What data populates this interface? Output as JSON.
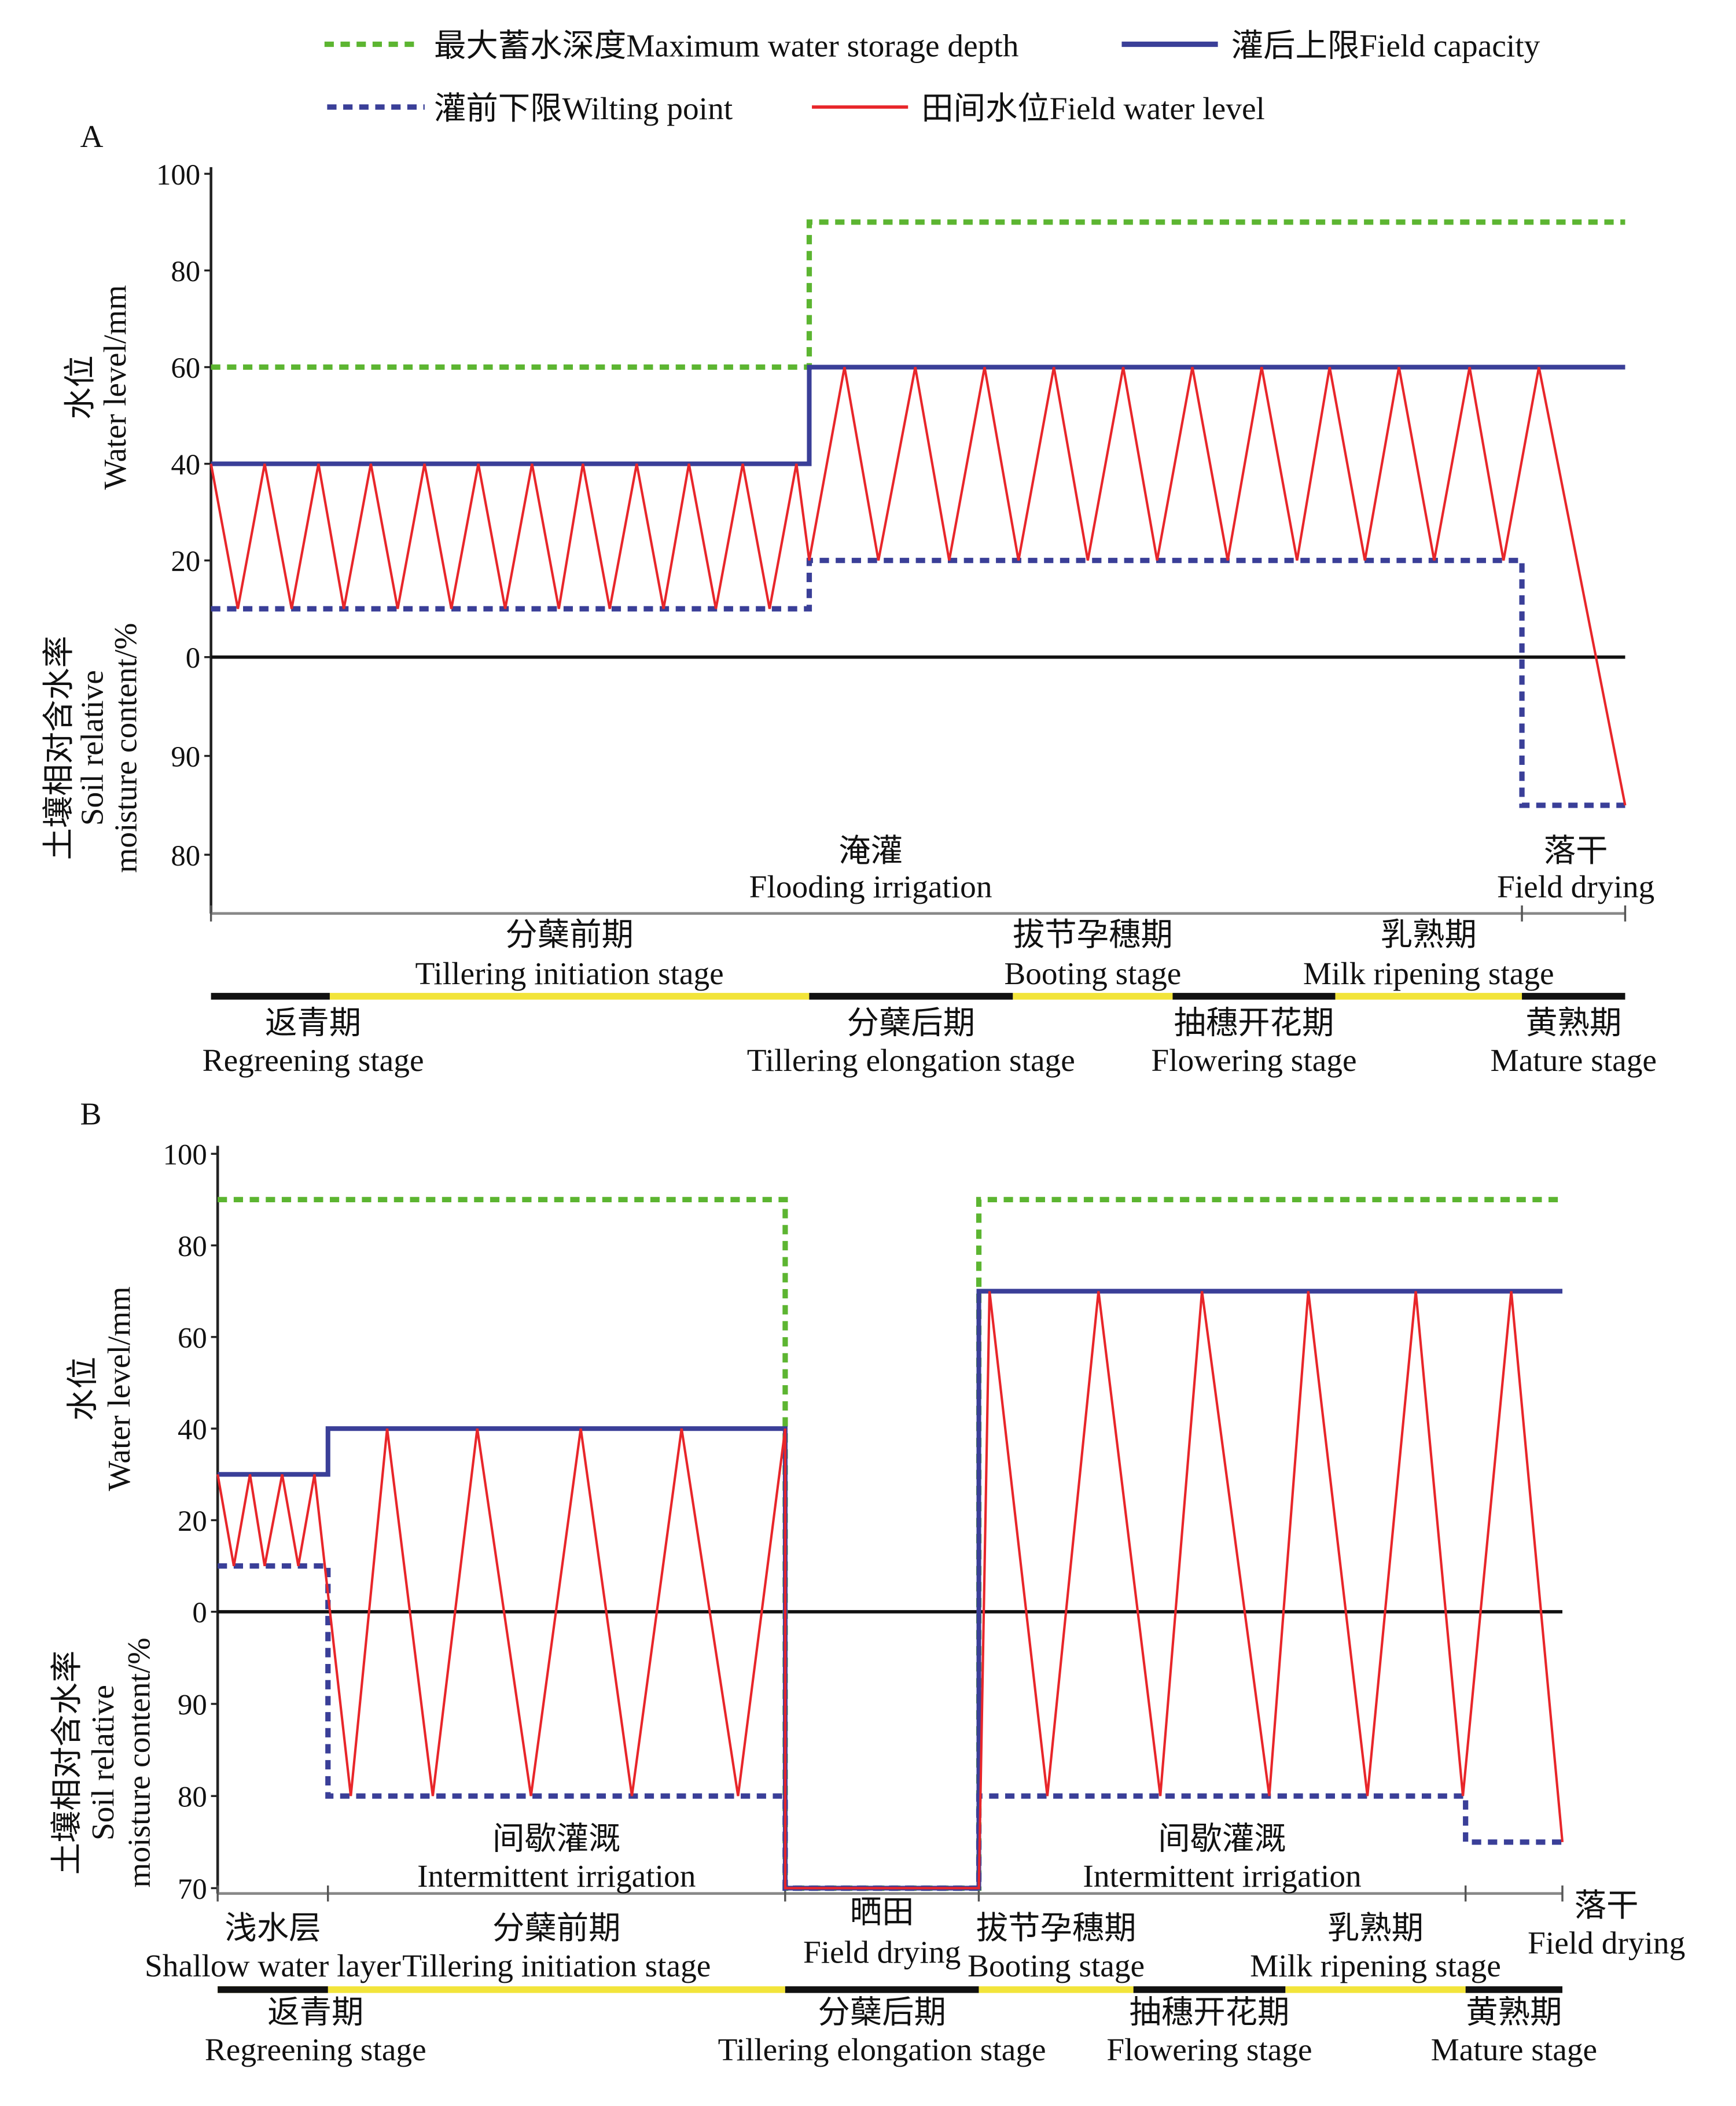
{
  "chart_data": [
    {
      "type": "line",
      "panel_label": "A",
      "legend": {
        "max_storage": "最大蓄水深度Maximum water storage depth",
        "field_capacity": "灌后上限Field capacity",
        "wilting_point": "灌前下限Wilting point",
        "field_water_level": "田间水位Field water level"
      },
      "ylabel_water_cn": "水位",
      "ylabel_water_en": "Water level/mm",
      "ylabel_soil_cn": "土壤相对含水率",
      "ylabel_soil_en1": "Soil relative",
      "ylabel_soil_en2": "moisture content/%",
      "water_ticks": [
        "100",
        "80",
        "60",
        "40",
        "20",
        "0"
      ],
      "soil_ticks": [
        "90",
        "80"
      ],
      "xlim": [
        0,
        100
      ],
      "water_ylim": [
        0,
        100
      ],
      "soil_ylim": [
        75,
        100
      ],
      "phases": [
        {
          "cn": "淹灌",
          "en": "Flooding irrigation",
          "range": [
            0,
            92.7
          ]
        },
        {
          "cn": "落干",
          "en": "Field drying",
          "range": [
            92.7,
            100
          ]
        }
      ],
      "stages_upper": [
        {
          "cn": "分蘖前期",
          "en": "Tillering initiation stage",
          "range": [
            8.4,
            42.3
          ]
        },
        {
          "cn": "拔节孕穗期",
          "en": "Booting stage",
          "range": [
            56.7,
            68.0
          ]
        },
        {
          "cn": "乳熟期",
          "en": "Milk ripening stage",
          "range": [
            79.5,
            92.7
          ]
        }
      ],
      "stages_lower": [
        {
          "cn": "返青期",
          "en": "Regreening stage",
          "range": [
            0,
            8.4
          ]
        },
        {
          "cn": "分蘖后期",
          "en": "Tillering elongation stage",
          "range": [
            42.3,
            56.7
          ]
        },
        {
          "cn": "抽穗开花期",
          "en": "Flowering stage",
          "range": [
            68.0,
            79.5
          ]
        },
        {
          "cn": "黄熟期",
          "en": "Mature stage",
          "range": [
            92.7,
            100
          ]
        }
      ],
      "series": [
        {
          "name": "max_storage",
          "color": "#5cb531",
          "style": "dashed",
          "points": [
            [
              0,
              60,
              "w"
            ],
            [
              42.3,
              60,
              "w"
            ],
            [
              42.3,
              90,
              "w"
            ],
            [
              100,
              90,
              "w"
            ]
          ]
        },
        {
          "name": "field_capacity",
          "color": "#3a3f98",
          "style": "solid",
          "points": [
            [
              0,
              40,
              "w"
            ],
            [
              42.3,
              40,
              "w"
            ],
            [
              42.3,
              60,
              "w"
            ],
            [
              100,
              60,
              "w"
            ]
          ]
        },
        {
          "name": "wilting_point",
          "color": "#3a3f98",
          "style": "dotted",
          "points": [
            [
              0,
              10,
              "w"
            ],
            [
              42.3,
              10,
              "w"
            ],
            [
              42.3,
              20,
              "w"
            ],
            [
              92.7,
              20,
              "w"
            ],
            [
              92.7,
              85,
              "s"
            ],
            [
              100,
              85,
              "s"
            ]
          ]
        },
        {
          "name": "field_water_level",
          "color": "#e8262a",
          "style": "thin",
          "points": [
            [
              0,
              40,
              "w"
            ],
            [
              1.9,
              10,
              "w"
            ],
            [
              3.8,
              40,
              "w"
            ],
            [
              5.7,
              10,
              "w"
            ],
            [
              7.6,
              40,
              "w"
            ],
            [
              9.4,
              10,
              "w"
            ],
            [
              11.3,
              40,
              "w"
            ],
            [
              13.2,
              10,
              "w"
            ],
            [
              15.1,
              40,
              "w"
            ],
            [
              17.0,
              10,
              "w"
            ],
            [
              18.9,
              40,
              "w"
            ],
            [
              20.8,
              10,
              "w"
            ],
            [
              22.7,
              40,
              "w"
            ],
            [
              24.6,
              10,
              "w"
            ],
            [
              26.3,
              40,
              "w"
            ],
            [
              28.2,
              10,
              "w"
            ],
            [
              30.1,
              40,
              "w"
            ],
            [
              32.0,
              10,
              "w"
            ],
            [
              33.8,
              40,
              "w"
            ],
            [
              35.7,
              10,
              "w"
            ],
            [
              37.6,
              40,
              "w"
            ],
            [
              39.5,
              10,
              "w"
            ],
            [
              41.4,
              40,
              "w"
            ],
            [
              42.3,
              20,
              "w"
            ],
            [
              44.8,
              60,
              "w"
            ],
            [
              47.2,
              20,
              "w"
            ],
            [
              49.8,
              60,
              "w"
            ],
            [
              52.2,
              20,
              "w"
            ],
            [
              54.7,
              60,
              "w"
            ],
            [
              57.1,
              20,
              "w"
            ],
            [
              59.6,
              60,
              "w"
            ],
            [
              62.0,
              20,
              "w"
            ],
            [
              64.5,
              60,
              "w"
            ],
            [
              66.9,
              20,
              "w"
            ],
            [
              69.4,
              60,
              "w"
            ],
            [
              71.9,
              20,
              "w"
            ],
            [
              74.3,
              60,
              "w"
            ],
            [
              76.8,
              20,
              "w"
            ],
            [
              79.1,
              60,
              "w"
            ],
            [
              81.6,
              20,
              "w"
            ],
            [
              84.0,
              60,
              "w"
            ],
            [
              86.5,
              20,
              "w"
            ],
            [
              89.0,
              60,
              "w"
            ],
            [
              91.4,
              20,
              "w"
            ],
            [
              93.9,
              60,
              "w"
            ],
            [
              100,
              85,
              "s"
            ]
          ]
        }
      ]
    },
    {
      "type": "line",
      "panel_label": "B",
      "ylabel_water_cn": "水位",
      "ylabel_water_en": "Water level/mm",
      "ylabel_soil_cn": "土壤相对含水率",
      "ylabel_soil_en1": "Soil relative",
      "ylabel_soil_en2": "moisture content/%",
      "water_ticks": [
        "100",
        "80",
        "60",
        "40",
        "20",
        "0"
      ],
      "soil_ticks": [
        "90",
        "80",
        "70"
      ],
      "xlim": [
        0,
        100
      ],
      "water_ylim": [
        0,
        100
      ],
      "soil_ylim": [
        70,
        100
      ],
      "phases": [
        {
          "cn": "间歇灌溉",
          "en": "Intermittent irrigation",
          "range": [
            8.2,
            42.2
          ]
        },
        {
          "cn": "晒田",
          "en": "Field drying",
          "range": [
            42.2,
            56.6
          ]
        },
        {
          "cn": "间歇灌溉",
          "en": "Intermittent irrigation",
          "range": [
            56.6,
            92.8
          ]
        },
        {
          "cn": "落干",
          "en": "Field drying",
          "range": [
            92.8,
            100
          ]
        }
      ],
      "stages_upper": [
        {
          "cn": "浅水层",
          "en": "Shallow water layer",
          "range": [
            0,
            8.2
          ]
        },
        {
          "cn": "分蘖前期",
          "en": "Tillering initiation stage",
          "range": [
            8.2,
            42.2
          ]
        },
        {
          "cn": "拔节孕穗期",
          "en": "Booting stage",
          "range": [
            56.6,
            68.1
          ]
        },
        {
          "cn": "乳熟期",
          "en": "Milk ripening stage",
          "range": [
            79.4,
            92.8
          ]
        }
      ],
      "stages_lower": [
        {
          "cn": "返青期",
          "en": "Regreening stage",
          "range": [
            0,
            8.2
          ]
        },
        {
          "cn": "分蘖后期",
          "en": "Tillering elongation stage",
          "range": [
            42.2,
            56.6
          ]
        },
        {
          "cn": "抽穗开花期",
          "en": "Flowering stage",
          "range": [
            68.1,
            79.4
          ]
        },
        {
          "cn": "黄熟期",
          "en": "Mature stage",
          "range": [
            92.8,
            100
          ]
        }
      ],
      "series": [
        {
          "name": "max_storage",
          "color": "#5cb531",
          "style": "dashed",
          "points": [
            [
              0,
              90,
              "w"
            ],
            [
              42.2,
              90,
              "w"
            ],
            [
              42.2,
              70,
              "s"
            ],
            [
              56.6,
              70,
              "s"
            ],
            [
              56.6,
              90,
              "w"
            ],
            [
              100,
              90,
              "w"
            ]
          ]
        },
        {
          "name": "field_capacity",
          "color": "#3a3f98",
          "style": "solid",
          "points": [
            [
              0,
              30,
              "w"
            ],
            [
              8.2,
              30,
              "w"
            ],
            [
              8.2,
              40,
              "w"
            ],
            [
              42.2,
              40,
              "w"
            ],
            [
              42.2,
              70,
              "s"
            ],
            [
              56.6,
              70,
              "s"
            ],
            [
              56.6,
              70,
              "w"
            ],
            [
              100,
              70,
              "w"
            ]
          ]
        },
        {
          "name": "wilting_point",
          "color": "#3a3f98",
          "style": "dotted",
          "points": [
            [
              0,
              10,
              "w"
            ],
            [
              8.2,
              10,
              "w"
            ],
            [
              8.2,
              80,
              "s"
            ],
            [
              42.2,
              80,
              "s"
            ],
            [
              42.2,
              70,
              "s"
            ],
            [
              56.6,
              70,
              "s"
            ],
            [
              56.6,
              80,
              "s"
            ],
            [
              92.8,
              80,
              "s"
            ],
            [
              92.8,
              75,
              "s"
            ],
            [
              100,
              75,
              "s"
            ]
          ]
        },
        {
          "name": "field_water_level",
          "color": "#e8262a",
          "style": "thin",
          "points": [
            [
              0,
              30,
              "w"
            ],
            [
              1.2,
              10,
              "w"
            ],
            [
              2.4,
              30,
              "w"
            ],
            [
              3.5,
              10,
              "w"
            ],
            [
              4.8,
              30,
              "w"
            ],
            [
              6.0,
              10,
              "w"
            ],
            [
              7.2,
              30,
              "w"
            ],
            [
              9.9,
              80,
              "s"
            ],
            [
              12.6,
              40,
              "w"
            ],
            [
              16.0,
              80,
              "s"
            ],
            [
              19.3,
              40,
              "w"
            ],
            [
              23.3,
              80,
              "s"
            ],
            [
              27.0,
              40,
              "w"
            ],
            [
              30.8,
              80,
              "s"
            ],
            [
              34.5,
              40,
              "w"
            ],
            [
              38.7,
              80,
              "s"
            ],
            [
              42.2,
              40,
              "w"
            ],
            [
              42.2,
              70,
              "s"
            ],
            [
              56.6,
              70,
              "s"
            ],
            [
              57.4,
              70,
              "w"
            ],
            [
              61.7,
              80,
              "s"
            ],
            [
              65.5,
              70,
              "w"
            ],
            [
              70.1,
              80,
              "s"
            ],
            [
              73.2,
              70,
              "w"
            ],
            [
              78.2,
              80,
              "s"
            ],
            [
              81.1,
              70,
              "w"
            ],
            [
              85.5,
              80,
              "s"
            ],
            [
              89.1,
              70,
              "w"
            ],
            [
              92.6,
              80,
              "s"
            ],
            [
              96.2,
              70,
              "w"
            ],
            [
              100,
              75,
              "s"
            ]
          ]
        }
      ]
    }
  ]
}
